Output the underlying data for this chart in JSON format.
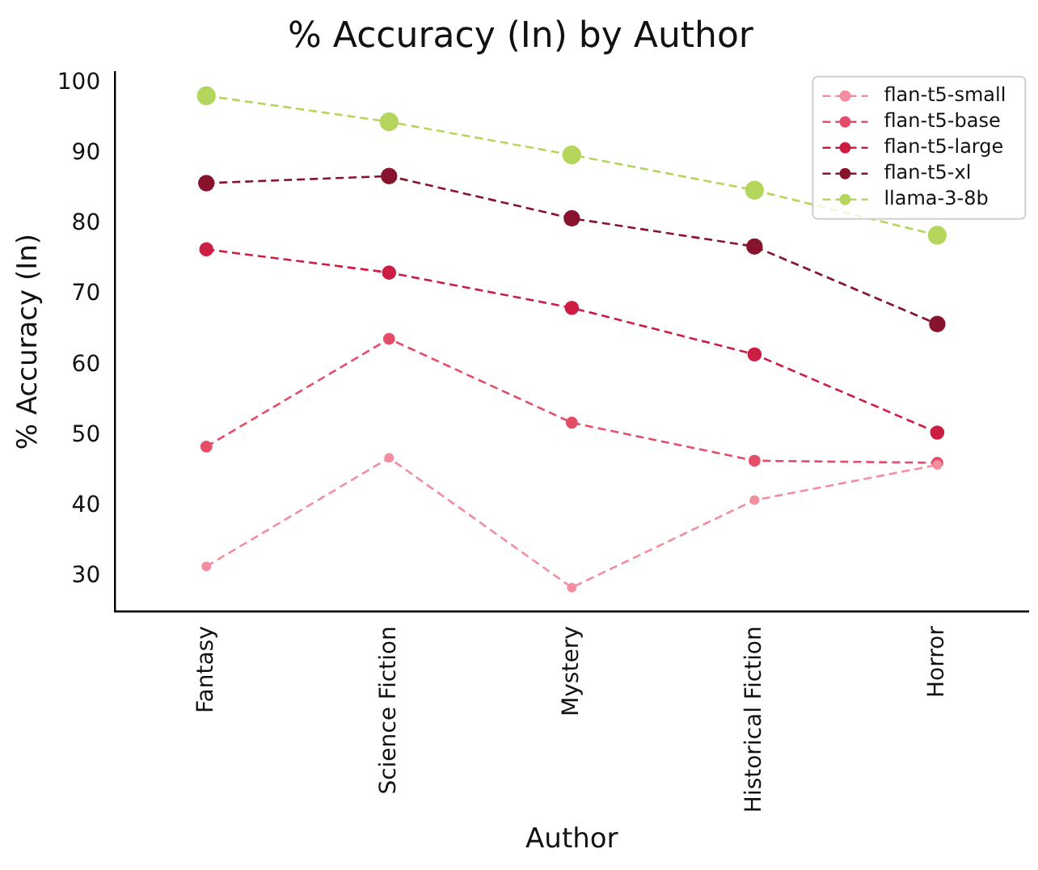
{
  "chart_data": {
    "type": "line",
    "title": "% Accuracy (In) by Author",
    "xlabel": "Author",
    "ylabel": "% Accuracy (In)",
    "categories": [
      "Fantasy",
      "Science Fiction",
      "Mystery",
      "Historical Fiction",
      "Horror"
    ],
    "ylim": [
      25,
      101.6
    ],
    "yticks": [
      30,
      40,
      50,
      60,
      70,
      80,
      90,
      100
    ],
    "grid": false,
    "legend": "top right",
    "marker": "circle",
    "line_style": "dashed",
    "series": [
      {
        "name": "flan-t5-small",
        "color": "#f28e9e",
        "values": [
          31.4,
          46.8,
          28.4,
          40.8,
          45.8
        ]
      },
      {
        "name": "flan-t5-base",
        "color": "#e44d67",
        "values": [
          48.4,
          63.7,
          51.8,
          46.4,
          46.1
        ]
      },
      {
        "name": "flan-t5-large",
        "color": "#cc1d43",
        "values": [
          76.4,
          73.1,
          68.1,
          61.5,
          50.4
        ]
      },
      {
        "name": "flan-t5-xl",
        "color": "#87132e",
        "values": [
          85.8,
          86.8,
          80.8,
          76.8,
          65.8
        ]
      },
      {
        "name": "llama-3-8b",
        "color": "#b5d65c",
        "values": [
          98.2,
          94.5,
          89.8,
          84.8,
          78.4
        ]
      }
    ]
  }
}
